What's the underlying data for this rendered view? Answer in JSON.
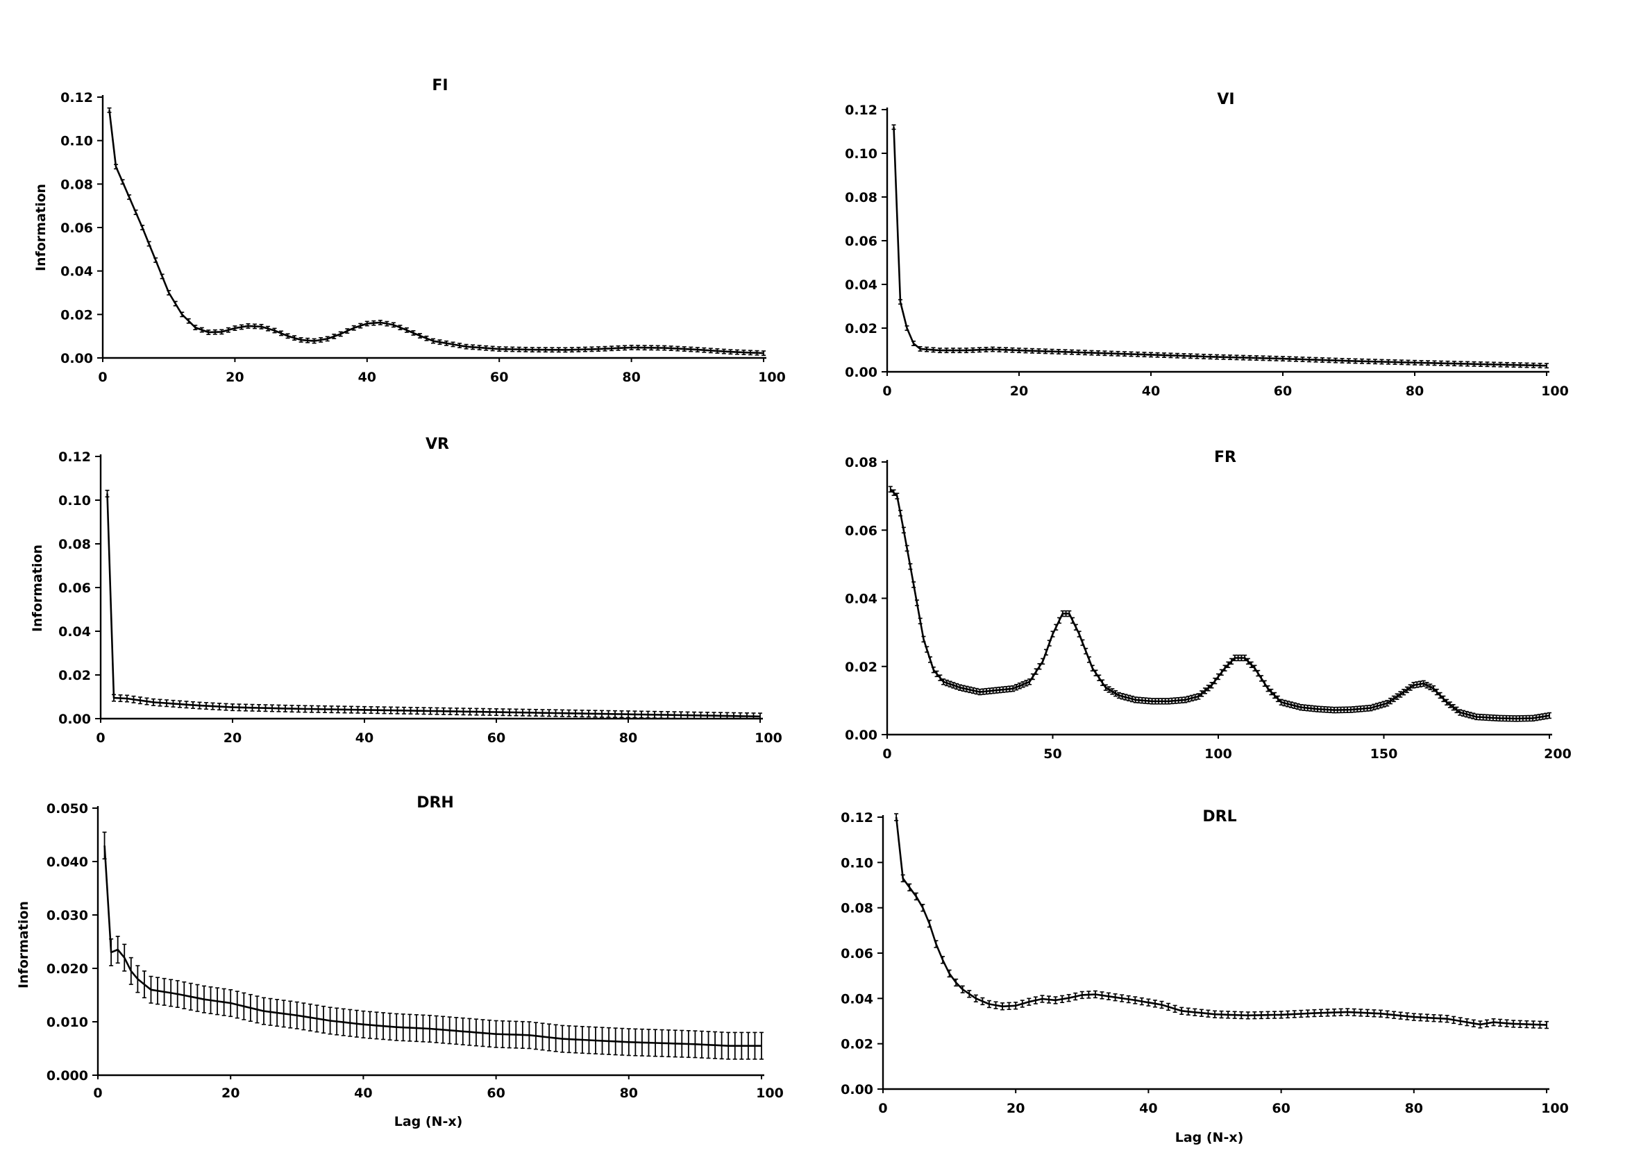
{
  "chart_data": [
    {
      "id": "fi",
      "type": "line",
      "title": "FI",
      "xlabel": "",
      "ylabel": "Information",
      "xlim": [
        0,
        100
      ],
      "ylim": [
        0,
        0.12
      ],
      "xticks": [
        0,
        20,
        40,
        60,
        80,
        100
      ],
      "xtick_labels": [
        "0",
        "20",
        "40",
        "60",
        "80",
        "100"
      ],
      "yticks": [
        0,
        0.02,
        0.04,
        0.06,
        0.08,
        0.1,
        0.12
      ],
      "ytick_labels": [
        "0.00",
        "0.02",
        "0.04",
        "0.06",
        "0.08",
        "0.10",
        "0.12"
      ],
      "x_start": 1,
      "x_step": 1,
      "error": 0.001,
      "knots": [
        [
          1,
          0.114
        ],
        [
          2,
          0.088
        ],
        [
          4,
          0.074
        ],
        [
          6,
          0.06
        ],
        [
          8,
          0.045
        ],
        [
          10,
          0.03
        ],
        [
          12,
          0.02
        ],
        [
          14,
          0.014
        ],
        [
          16,
          0.0118
        ],
        [
          18,
          0.012
        ],
        [
          20,
          0.0137
        ],
        [
          22,
          0.0147
        ],
        [
          24,
          0.0144
        ],
        [
          26,
          0.0126
        ],
        [
          28,
          0.0101
        ],
        [
          30,
          0.0083
        ],
        [
          32,
          0.0078
        ],
        [
          34,
          0.0088
        ],
        [
          36,
          0.011
        ],
        [
          38,
          0.0138
        ],
        [
          40,
          0.0158
        ],
        [
          42,
          0.0163
        ],
        [
          44,
          0.0152
        ],
        [
          46,
          0.0128
        ],
        [
          48,
          0.0102
        ],
        [
          50,
          0.0078
        ],
        [
          55,
          0.0052
        ],
        [
          60,
          0.0041
        ],
        [
          65,
          0.0038
        ],
        [
          70,
          0.0037
        ],
        [
          75,
          0.0041
        ],
        [
          80,
          0.0048
        ],
        [
          85,
          0.0046
        ],
        [
          90,
          0.0038
        ],
        [
          95,
          0.0028
        ],
        [
          100,
          0.0022
        ]
      ]
    },
    {
      "id": "vi",
      "type": "line",
      "title": "VI",
      "xlabel": "",
      "ylabel": "",
      "xlim": [
        0,
        100
      ],
      "ylim": [
        0,
        0.12
      ],
      "xticks": [
        0,
        20,
        40,
        60,
        80,
        100
      ],
      "xtick_labels": [
        "0",
        "20",
        "40",
        "60",
        "80",
        "100"
      ],
      "yticks": [
        0,
        0.02,
        0.04,
        0.06,
        0.08,
        0.1,
        0.12
      ],
      "ytick_labels": [
        "0.00",
        "0.02",
        "0.04",
        "0.06",
        "0.08",
        "0.10",
        "0.12"
      ],
      "x_start": 1,
      "x_step": 1,
      "error": 0.001,
      "knots": [
        [
          1,
          0.112
        ],
        [
          2,
          0.032
        ],
        [
          3,
          0.02
        ],
        [
          4,
          0.013
        ],
        [
          5,
          0.0105
        ],
        [
          8,
          0.0098
        ],
        [
          12,
          0.0098
        ],
        [
          16,
          0.0103
        ],
        [
          20,
          0.0098
        ],
        [
          30,
          0.0088
        ],
        [
          40,
          0.0078
        ],
        [
          50,
          0.0068
        ],
        [
          60,
          0.006
        ],
        [
          70,
          0.005
        ],
        [
          80,
          0.0042
        ],
        [
          90,
          0.0035
        ],
        [
          100,
          0.0028
        ]
      ]
    },
    {
      "id": "vr",
      "type": "line",
      "title": "VR",
      "xlabel": "",
      "ylabel": "Information",
      "xlim": [
        0,
        100
      ],
      "ylim": [
        0,
        0.12
      ],
      "xticks": [
        0,
        20,
        40,
        60,
        80,
        100
      ],
      "xtick_labels": [
        "0",
        "20",
        "40",
        "60",
        "80",
        "100"
      ],
      "yticks": [
        0,
        0.02,
        0.04,
        0.06,
        0.08,
        0.1,
        0.12
      ],
      "ytick_labels": [
        "0.00",
        "0.02",
        "0.04",
        "0.06",
        "0.08",
        "0.10",
        "0.12"
      ],
      "x_start": 1,
      "x_step": 1,
      "error": 0.0015,
      "knots": [
        [
          1,
          0.103
        ],
        [
          2,
          0.0095
        ],
        [
          4,
          0.0092
        ],
        [
          8,
          0.0075
        ],
        [
          15,
          0.006
        ],
        [
          20,
          0.0052
        ],
        [
          30,
          0.0045
        ],
        [
          40,
          0.004
        ],
        [
          50,
          0.0035
        ],
        [
          60,
          0.003
        ],
        [
          70,
          0.0025
        ],
        [
          80,
          0.002
        ],
        [
          90,
          0.0015
        ],
        [
          100,
          0.001
        ]
      ]
    },
    {
      "id": "fr",
      "type": "line",
      "title": "FR",
      "xlabel": "",
      "ylabel": "",
      "xlim": [
        0,
        200
      ],
      "ylim": [
        0,
        0.08
      ],
      "xticks": [
        0,
        50,
        100,
        150,
        200
      ],
      "xtick_labels": [
        "0",
        "50",
        "100",
        "150",
        "200"
      ],
      "yticks": [
        0,
        0.02,
        0.04,
        0.06,
        0.08
      ],
      "ytick_labels": [
        "0.00",
        "0.02",
        "0.04",
        "0.06",
        "0.08"
      ],
      "x_start": 1,
      "x_step": 1,
      "error": 0.0008,
      "knots": [
        [
          1,
          0.072
        ],
        [
          3,
          0.07
        ],
        [
          5,
          0.06
        ],
        [
          8,
          0.044
        ],
        [
          11,
          0.028
        ],
        [
          14,
          0.019
        ],
        [
          17,
          0.0155
        ],
        [
          22,
          0.0138
        ],
        [
          28,
          0.0125
        ],
        [
          33,
          0.013
        ],
        [
          38,
          0.0135
        ],
        [
          43,
          0.0155
        ],
        [
          47,
          0.0215
        ],
        [
          50,
          0.0295
        ],
        [
          53,
          0.0355
        ],
        [
          55,
          0.0355
        ],
        [
          58,
          0.0295
        ],
        [
          62,
          0.0195
        ],
        [
          66,
          0.0138
        ],
        [
          70,
          0.0115
        ],
        [
          75,
          0.0102
        ],
        [
          80,
          0.0098
        ],
        [
          85,
          0.0098
        ],
        [
          90,
          0.0102
        ],
        [
          94,
          0.0112
        ],
        [
          98,
          0.0145
        ],
        [
          102,
          0.0195
        ],
        [
          105,
          0.0225
        ],
        [
          108,
          0.0225
        ],
        [
          111,
          0.0195
        ],
        [
          115,
          0.0135
        ],
        [
          119,
          0.0095
        ],
        [
          125,
          0.008
        ],
        [
          130,
          0.0075
        ],
        [
          135,
          0.0072
        ],
        [
          140,
          0.0073
        ],
        [
          146,
          0.0078
        ],
        [
          151,
          0.0092
        ],
        [
          155,
          0.0118
        ],
        [
          159,
          0.0145
        ],
        [
          162,
          0.015
        ],
        [
          165,
          0.0135
        ],
        [
          169,
          0.0095
        ],
        [
          173,
          0.0065
        ],
        [
          178,
          0.0052
        ],
        [
          185,
          0.0048
        ],
        [
          190,
          0.0047
        ],
        [
          195,
          0.0048
        ],
        [
          200,
          0.0056
        ]
      ]
    },
    {
      "id": "drh",
      "type": "line",
      "title": "DRH",
      "xlabel": "Lag (N-x)",
      "ylabel": "Information",
      "xlim": [
        0,
        100
      ],
      "ylim": [
        0,
        0.05
      ],
      "xticks": [
        0,
        20,
        40,
        60,
        80,
        100
      ],
      "xtick_labels": [
        "0",
        "20",
        "40",
        "60",
        "80",
        "100"
      ],
      "yticks": [
        0,
        0.01,
        0.02,
        0.03,
        0.04,
        0.05
      ],
      "ytick_labels": [
        "0.000",
        "0.010",
        "0.020",
        "0.030",
        "0.040",
        "0.050"
      ],
      "x_start": 1,
      "x_step": 1,
      "error": 0.0025,
      "knots": [
        [
          1,
          0.043
        ],
        [
          2,
          0.023
        ],
        [
          3,
          0.0235
        ],
        [
          4,
          0.022
        ],
        [
          5,
          0.0195
        ],
        [
          6,
          0.018
        ],
        [
          8,
          0.016
        ],
        [
          12,
          0.0152
        ],
        [
          16,
          0.0142
        ],
        [
          20,
          0.0135
        ],
        [
          25,
          0.012
        ],
        [
          30,
          0.0112
        ],
        [
          35,
          0.0102
        ],
        [
          40,
          0.0095
        ],
        [
          45,
          0.009
        ],
        [
          50,
          0.0087
        ],
        [
          55,
          0.0082
        ],
        [
          60,
          0.0077
        ],
        [
          65,
          0.0075
        ],
        [
          70,
          0.0068
        ],
        [
          75,
          0.0065
        ],
        [
          80,
          0.0062
        ],
        [
          85,
          0.006
        ],
        [
          90,
          0.0058
        ],
        [
          95,
          0.0055
        ],
        [
          100,
          0.0055
        ]
      ]
    },
    {
      "id": "drl",
      "type": "line",
      "title": "DRL",
      "xlabel": "Lag (N-x)",
      "ylabel": "",
      "xlim": [
        0,
        100
      ],
      "ylim": [
        0,
        0.12
      ],
      "xticks": [
        0,
        20,
        40,
        60,
        80,
        100
      ],
      "xtick_labels": [
        "0",
        "20",
        "40",
        "60",
        "80",
        "100"
      ],
      "yticks": [
        0,
        0.02,
        0.04,
        0.06,
        0.08,
        0.1,
        0.12
      ],
      "ytick_labels": [
        "0.00",
        "0.02",
        "0.04",
        "0.06",
        "0.08",
        "0.10",
        "0.12"
      ],
      "x_start": 2,
      "x_step": 1,
      "error": 0.0015,
      "knots": [
        [
          2,
          0.12
        ],
        [
          3,
          0.093
        ],
        [
          4,
          0.089
        ],
        [
          5,
          0.085
        ],
        [
          6,
          0.08
        ],
        [
          7,
          0.073
        ],
        [
          8,
          0.064
        ],
        [
          9,
          0.057
        ],
        [
          10,
          0.051
        ],
        [
          11,
          0.047
        ],
        [
          12,
          0.044
        ],
        [
          14,
          0.04
        ],
        [
          16,
          0.0375
        ],
        [
          18,
          0.0365
        ],
        [
          20,
          0.0368
        ],
        [
          22,
          0.0385
        ],
        [
          24,
          0.0398
        ],
        [
          26,
          0.0392
        ],
        [
          28,
          0.0402
        ],
        [
          30,
          0.0415
        ],
        [
          32,
          0.0418
        ],
        [
          35,
          0.0405
        ],
        [
          38,
          0.0392
        ],
        [
          42,
          0.0372
        ],
        [
          45,
          0.0345
        ],
        [
          50,
          0.033
        ],
        [
          55,
          0.0325
        ],
        [
          60,
          0.0328
        ],
        [
          65,
          0.0335
        ],
        [
          70,
          0.034
        ],
        [
          75,
          0.0333
        ],
        [
          80,
          0.0318
        ],
        [
          85,
          0.031
        ],
        [
          90,
          0.0285
        ],
        [
          92,
          0.0295
        ],
        [
          95,
          0.0288
        ],
        [
          100,
          0.0283
        ]
      ]
    }
  ]
}
